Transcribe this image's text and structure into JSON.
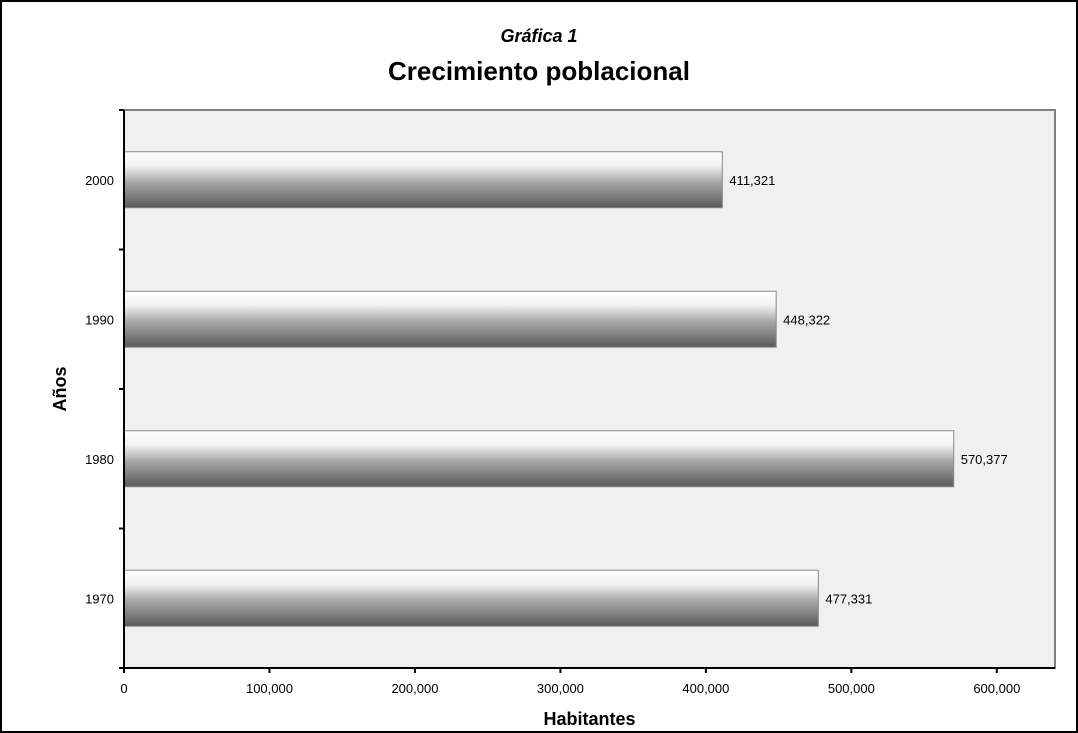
{
  "chart_data": {
    "type": "bar",
    "orientation": "horizontal",
    "subtitle": "Gráfica 1",
    "title": "Crecimiento poblacional",
    "categories": [
      "1970",
      "1980",
      "1990",
      "2000"
    ],
    "values": [
      477331,
      570377,
      448322,
      411321
    ],
    "data_labels": [
      "477,331",
      "570,377",
      "448,322",
      "411,321"
    ],
    "xlabel": "Habitantes",
    "ylabel": "Años",
    "xlim": [
      0,
      640000
    ],
    "xticks": [
      0,
      100000,
      200000,
      300000,
      400000,
      500000,
      600000
    ],
    "xtick_labels": [
      "0",
      "100,000",
      "200,000",
      "300,000",
      "400,000",
      "500,000",
      "600,000"
    ],
    "grid": false,
    "legend": "none",
    "colors": {
      "plot_background": "#f0f0f0",
      "plot_border": "#808080",
      "bar_light": "#ffffff",
      "bar_dark": "#5a5a5a"
    }
  }
}
